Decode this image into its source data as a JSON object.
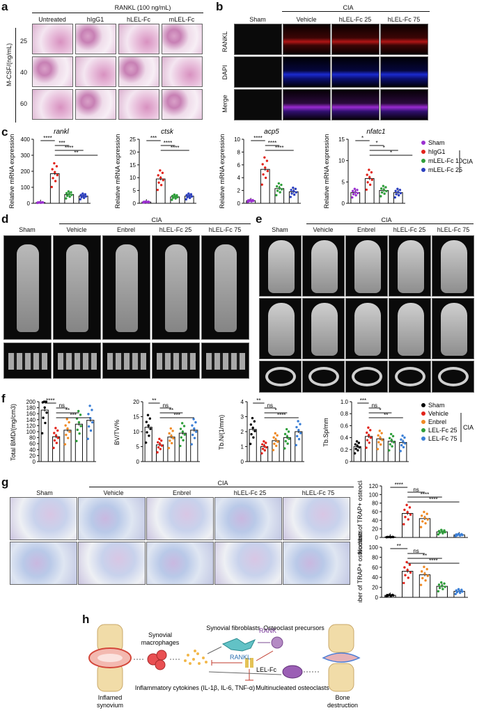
{
  "panels": {
    "a": "a",
    "b": "b",
    "c": "c",
    "d": "d",
    "e": "e",
    "f": "f",
    "g": "g",
    "h": "h"
  },
  "a": {
    "title": "RANKL (100 ng/mL)",
    "cols": [
      "Untreated",
      "hIgG1",
      "hLEL-Fc",
      "mLEL-Fc"
    ],
    "rows": [
      "25",
      "40",
      "60"
    ],
    "ylabel": "M-CSF/(ng/mL)"
  },
  "b": {
    "group": "CIA",
    "cols": [
      "Sham",
      "Vehicle",
      "hLEL-Fc 25",
      "hLEL-Fc 75"
    ],
    "rows": [
      "RANKL",
      "DAPI",
      "Merge"
    ]
  },
  "c": {
    "ylabel": "Relative mRNA expression",
    "legend_group": "CIA",
    "legend": [
      {
        "name": "Sham",
        "color": "#9b30d0",
        "marker": "circle"
      },
      {
        "name": "hIgG1",
        "color": "#e2231a",
        "marker": "square"
      },
      {
        "name": "mLEL-Fc 10",
        "color": "#2e9e3a",
        "marker": "triangle"
      },
      {
        "name": "mLEL-Fc 25",
        "color": "#2b3fbf",
        "marker": "triangle-down"
      }
    ],
    "charts": [
      {
        "title": "rankl",
        "yticks": [
          "0",
          "100",
          "200",
          "300",
          "400"
        ],
        "ymax": 400,
        "values": [
          5,
          185,
          55,
          45
        ],
        "sig": [
          "****",
          "***",
          "****",
          "**"
        ]
      },
      {
        "title": "ctsk",
        "yticks": [
          "0",
          "5",
          "10",
          "15",
          "20",
          "25"
        ],
        "ymax": 25,
        "values": [
          0.5,
          9.5,
          2.5,
          2.8
        ],
        "sig": [
          "***",
          "****",
          "****"
        ]
      },
      {
        "title": "acp5",
        "yticks": [
          "0",
          "2",
          "4",
          "6",
          "8",
          "10"
        ],
        "ymax": 10,
        "values": [
          0.4,
          5.3,
          2.3,
          1.8
        ],
        "sig": [
          "****",
          "****",
          "****"
        ]
      },
      {
        "title": "nfatc1",
        "yticks": [
          "0",
          "5",
          "10",
          "15"
        ],
        "ymax": 15,
        "values": [
          2.5,
          5.8,
          3.0,
          2.5
        ],
        "sig": [
          "*",
          "*",
          "*",
          "*"
        ]
      }
    ]
  },
  "d": {
    "group": "CIA",
    "cols": [
      "Sham",
      "Vehicle",
      "Enbrel",
      "hLEL-Fc 25",
      "hLEL-Fc 75"
    ]
  },
  "e": {
    "group": "CIA",
    "cols": [
      "Sham",
      "Vehicle",
      "Enbrel",
      "hLEL-Fc 25",
      "hLEL-Fc 75"
    ]
  },
  "f": {
    "legend_group": "CIA",
    "legend": [
      {
        "name": "Sham",
        "color": "#000000"
      },
      {
        "name": "Vehicle",
        "color": "#e2231a"
      },
      {
        "name": "Enbrel",
        "color": "#f08a24"
      },
      {
        "name": "LEL-Fc 25",
        "color": "#2e9e3a"
      },
      {
        "name": "LEL-Fc 75",
        "color": "#3b7fd6"
      }
    ],
    "charts": [
      {
        "ylabel": "Total BMD/(mg/cm3)",
        "yticks": [
          "0",
          "20",
          "40",
          "60",
          "80",
          "100",
          "120",
          "140",
          "160",
          "180",
          "200"
        ],
        "ymax": 200,
        "values": [
          172,
          83,
          105,
          125,
          138
        ],
        "sig": [
          "****",
          "ns",
          "**",
          "***"
        ]
      },
      {
        "ylabel": "BV/TV/%",
        "yticks": [
          "0",
          "5",
          "10",
          "15",
          "20"
        ],
        "ymax": 20,
        "values": [
          11.5,
          5.6,
          8.2,
          9.5,
          10.5
        ],
        "sig": [
          "**",
          "ns",
          "**",
          "***"
        ]
      },
      {
        "ylabel": "Tb.N/(1/mm)",
        "yticks": [
          "0",
          "1",
          "2",
          "3",
          "4"
        ],
        "ymax": 4,
        "values": [
          2.15,
          1.0,
          1.4,
          1.6,
          2.0
        ],
        "sig": [
          "**",
          "ns",
          "*",
          "****"
        ]
      },
      {
        "ylabel": "Tb.Sp/mm",
        "yticks": [
          "0",
          "0.2",
          "0.4",
          "0.6",
          "0.8",
          "1.0"
        ],
        "ymax": 1.0,
        "values": [
          0.25,
          0.42,
          0.38,
          0.34,
          0.32
        ],
        "sig": [
          "***",
          "ns",
          "*",
          "**"
        ]
      }
    ]
  },
  "g": {
    "group": "CIA",
    "cols": [
      "Sham",
      "Vehicle",
      "Enbrel",
      "hLEL-Fc 25",
      "hLEL-Fc 75"
    ],
    "charts": [
      {
        "ylabel": "Number of TRAP+ osteoclasts",
        "yticks": [
          "0",
          "20",
          "40",
          "60",
          "80",
          "100",
          "120"
        ],
        "ymax": 120,
        "values": [
          1,
          56,
          44,
          13,
          6
        ],
        "sig": [
          "****",
          "ns",
          "****",
          "****"
        ]
      },
      {
        "ylabel": "Number of TRAP+ osteoclasts",
        "yticks": [
          "0",
          "20",
          "40",
          "60",
          "80",
          "100"
        ],
        "ymax": 100,
        "values": [
          4,
          52,
          45,
          22,
          12
        ],
        "sig": [
          "**",
          "ns",
          "**",
          "****"
        ]
      }
    ]
  },
  "h": {
    "inflamed": "Inflamed synovium",
    "macrophages": "Synovial macrophages",
    "fibroblasts": "Synovial fibroblasts",
    "rank": "RANK",
    "rankl": "RANKL",
    "precursors": "Osteoclast precursors",
    "cytokines": "Inflammatory cytokines (IL-1β, IL-6, TNF-α)",
    "lelfc": "LEL-Fc",
    "multinucleated": "Multinucleated osteoclasts",
    "destruction": "Bone destruction"
  }
}
